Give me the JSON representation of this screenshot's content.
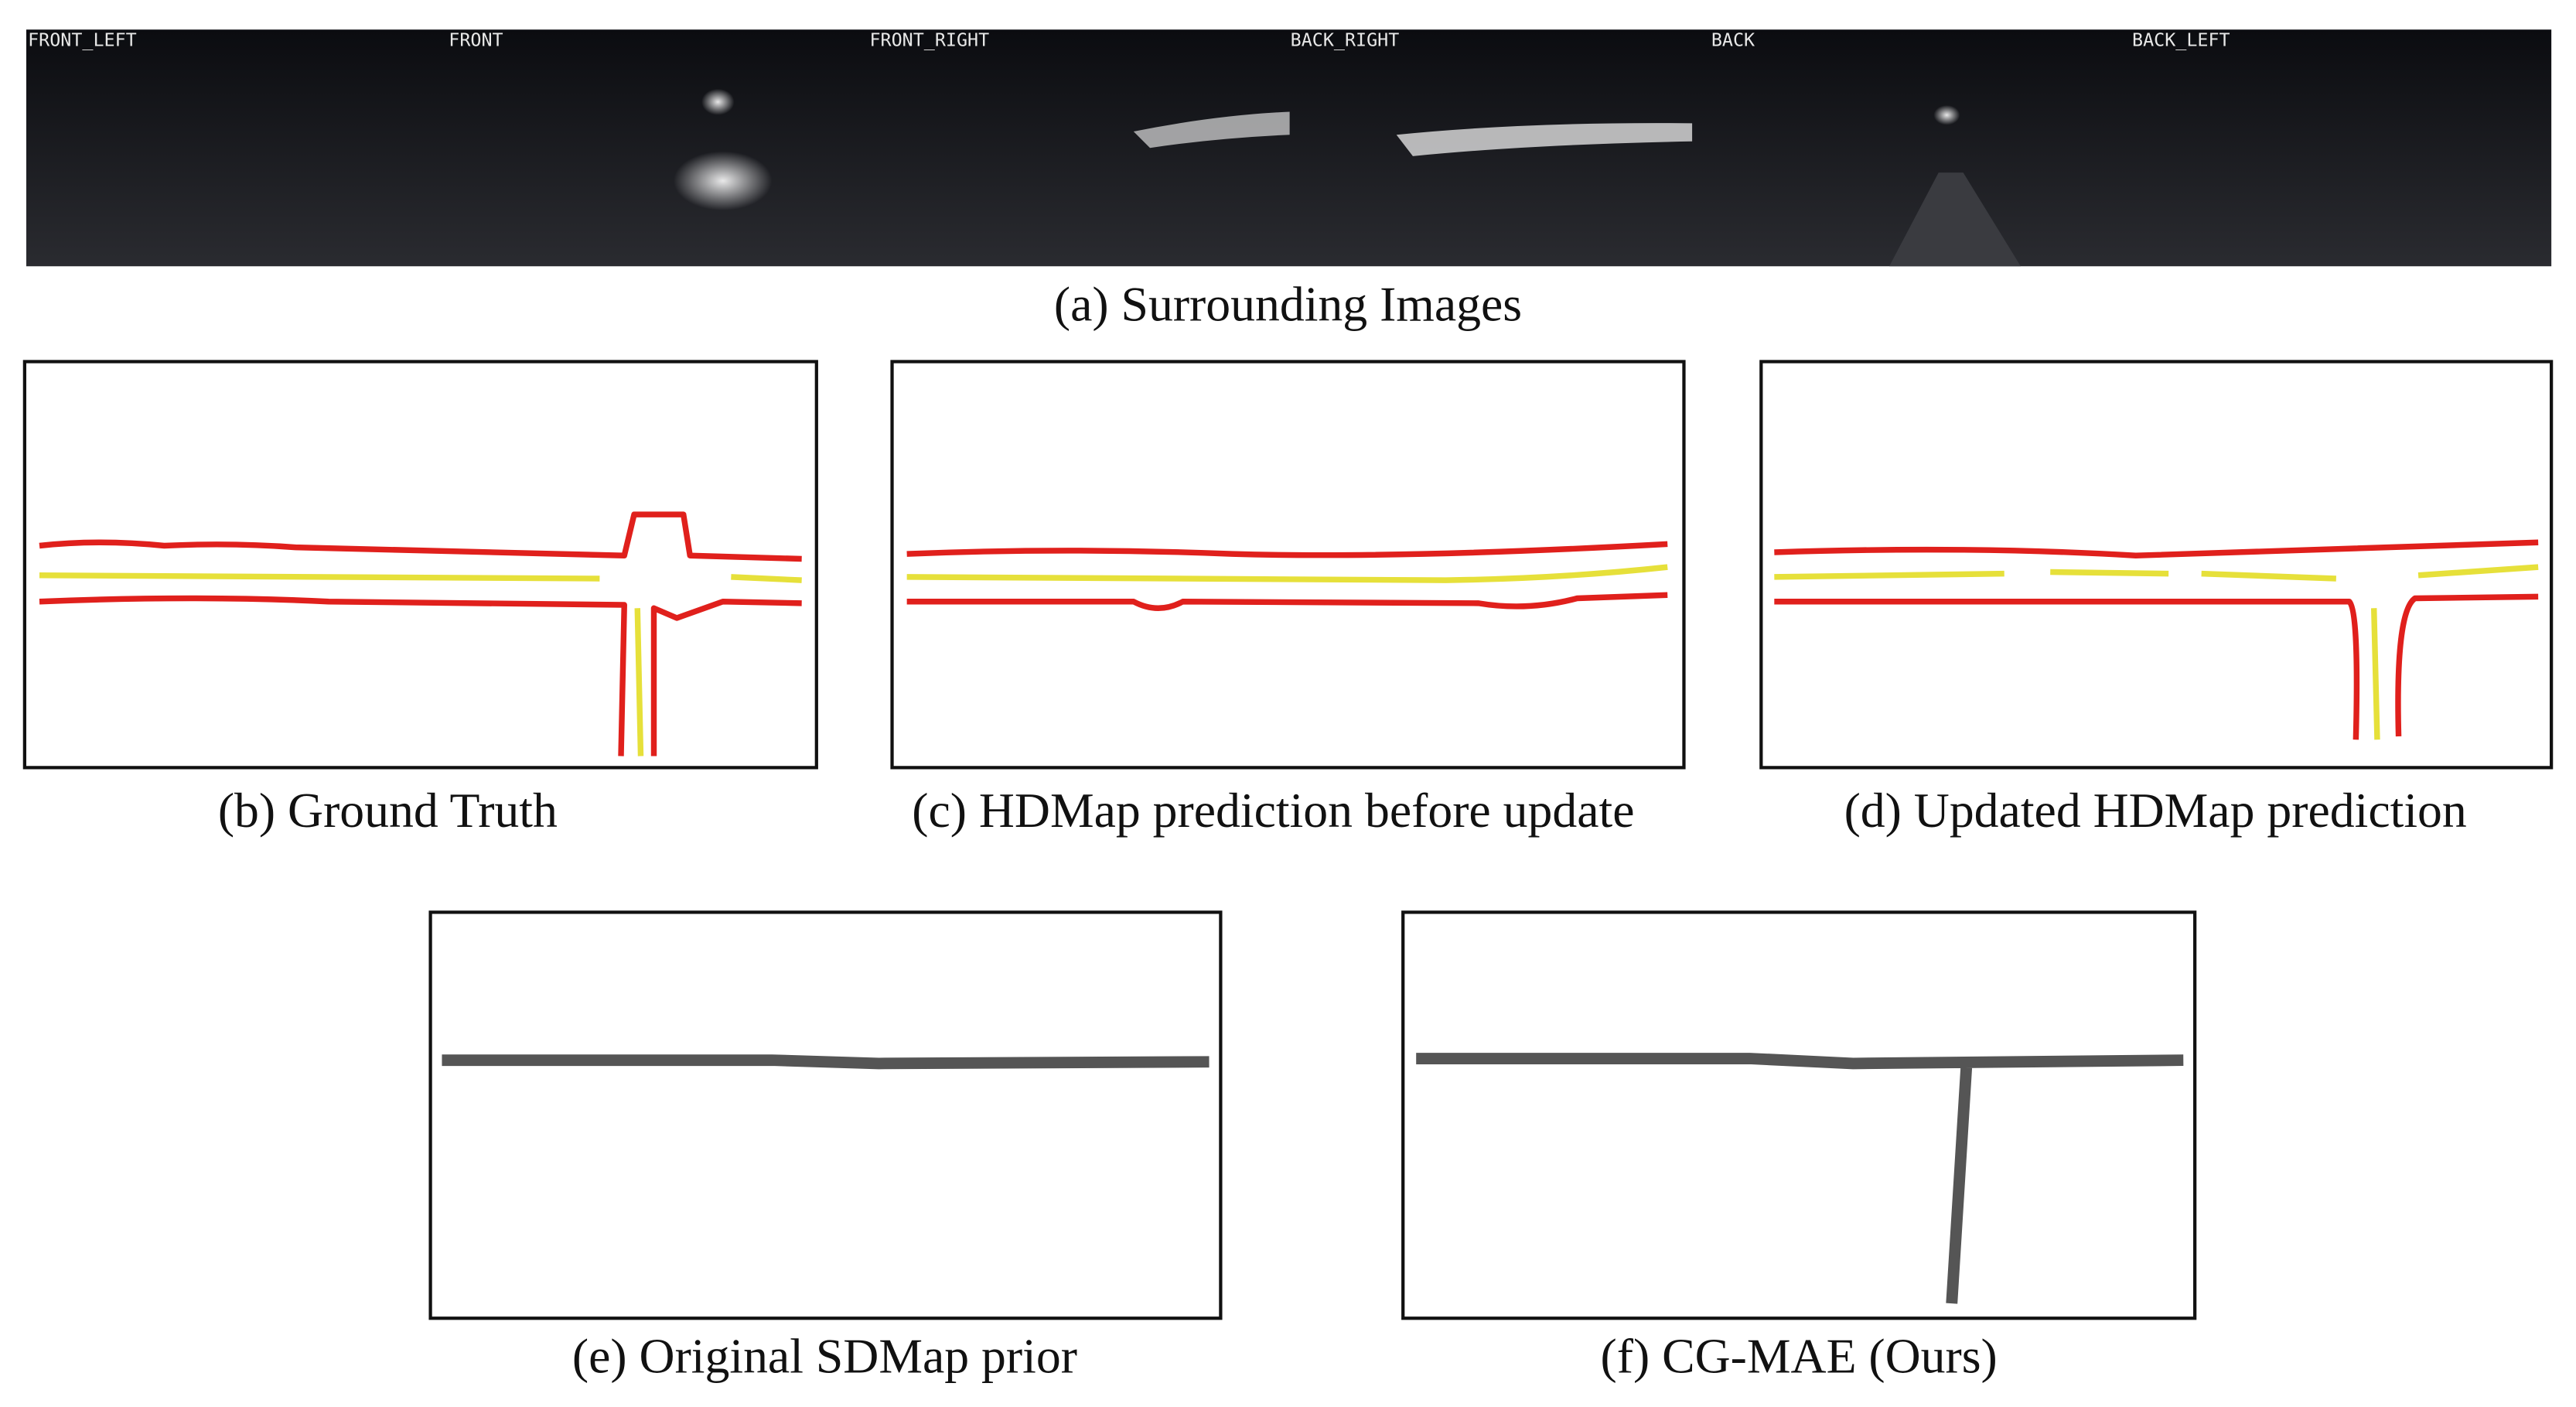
{
  "figure": {
    "cameras": [
      "FRONT_LEFT",
      "FRONT",
      "FRONT_RIGHT",
      "BACK_RIGHT",
      "BACK",
      "BACK_LEFT"
    ],
    "captions": {
      "a": "(a) Surrounding Images",
      "b": "(b) Ground Truth",
      "c": "(c) HDMap prediction before update",
      "d": "(d) Updated HDMap prediction",
      "e": "(e) Original SDMap prior",
      "f": "(f) CG-MAE (Ours)"
    }
  }
}
